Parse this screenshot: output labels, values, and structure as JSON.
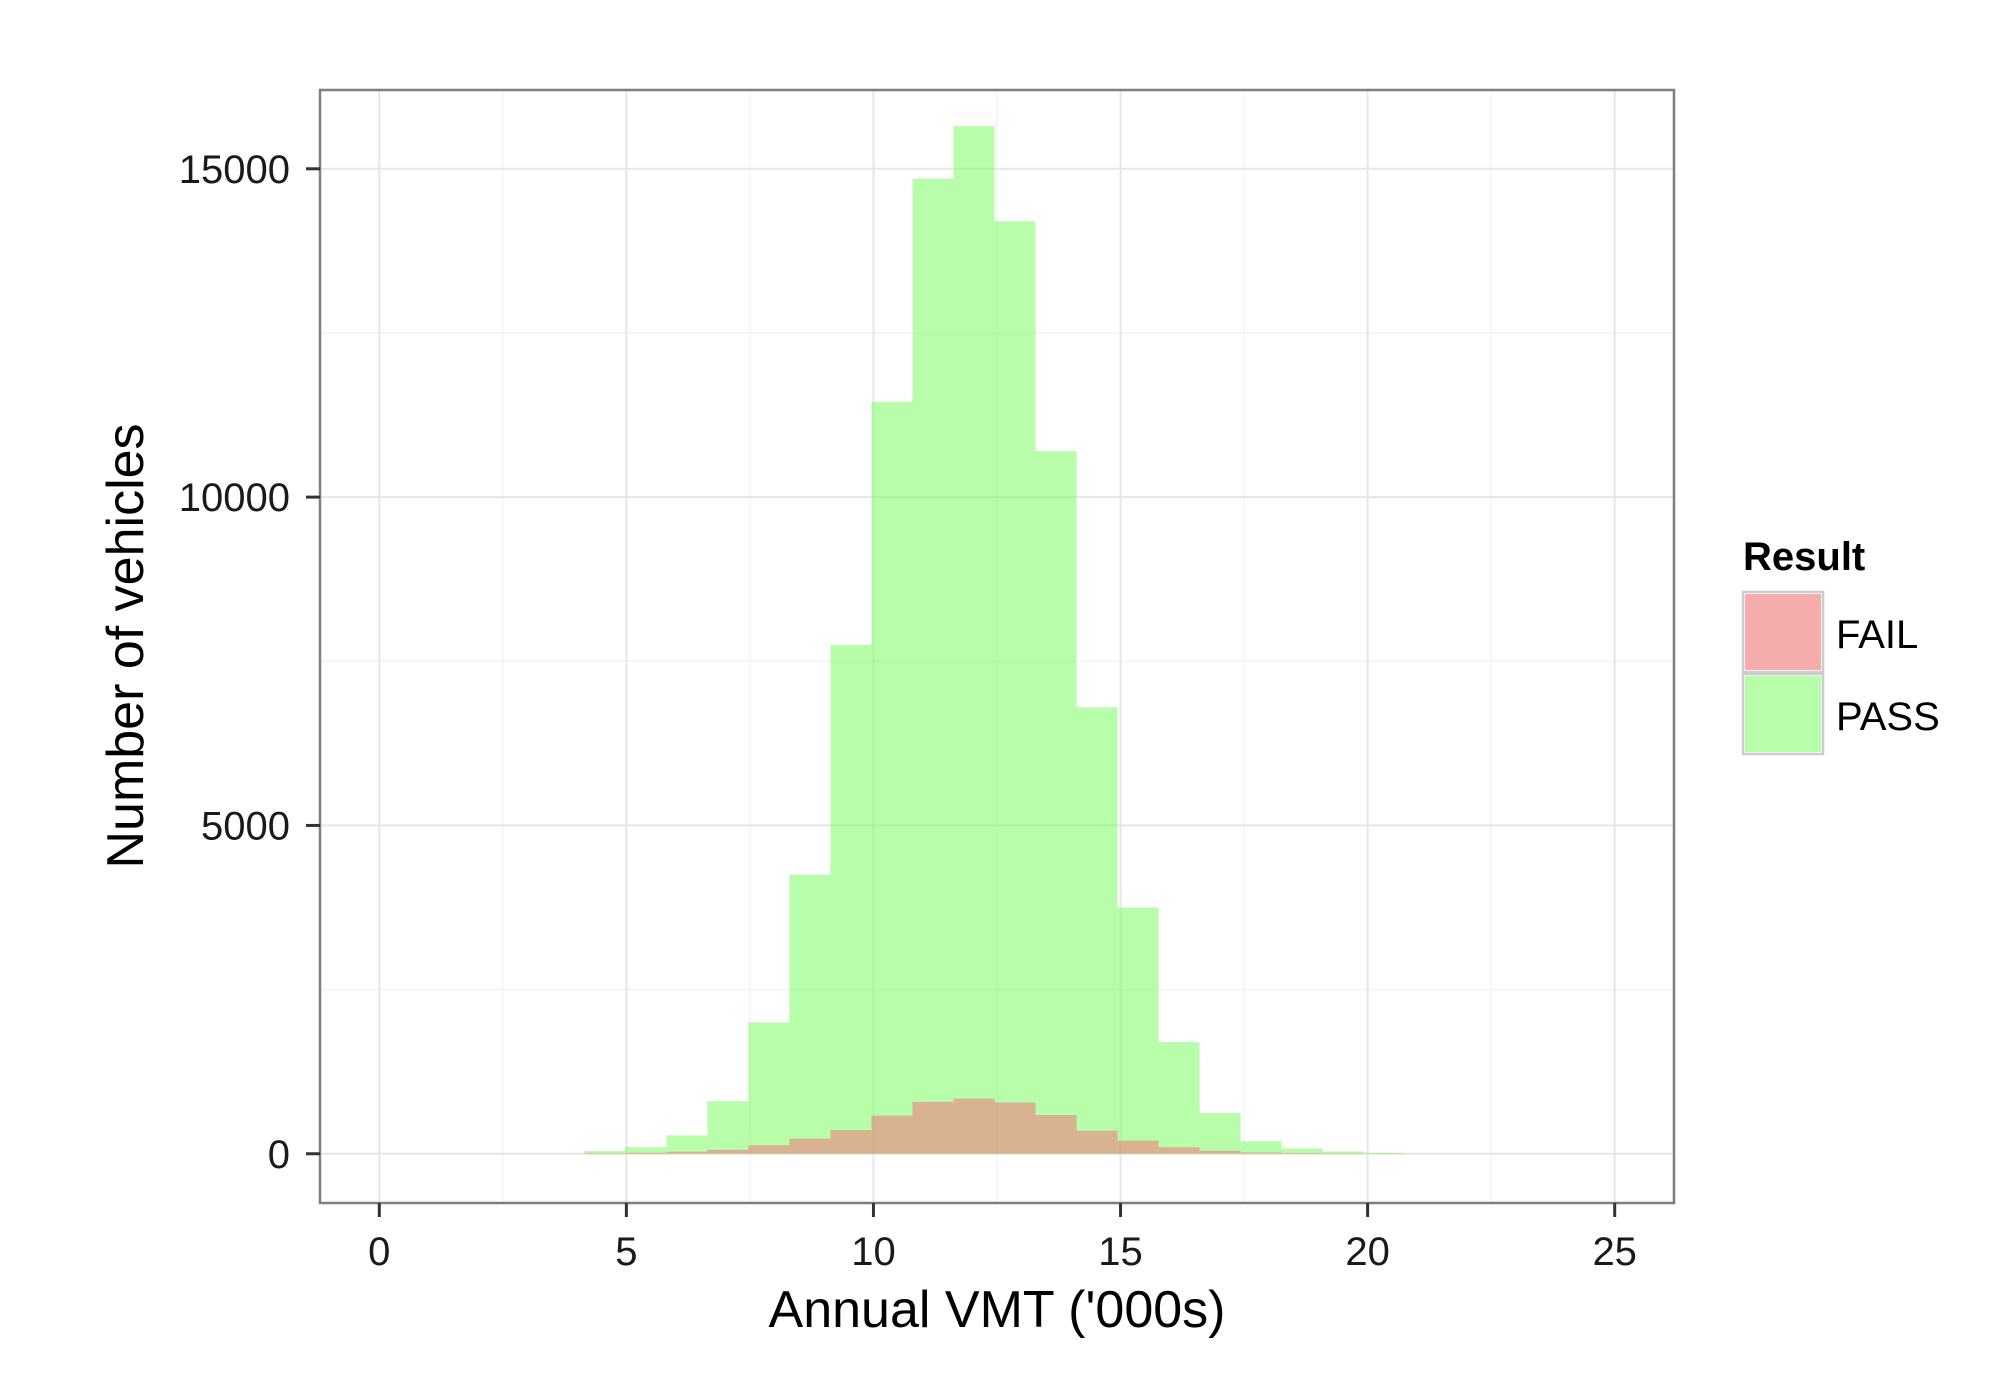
{
  "chart_data": {
    "type": "bar",
    "subtype": "overlapping-histogram",
    "xlabel": "Annual VMT ('000s)",
    "ylabel": "Number of vehicles",
    "xlim": [
      -1.2,
      26.2
    ],
    "ylim": [
      -750,
      16200
    ],
    "x_ticks": [
      0,
      5,
      10,
      15,
      20,
      25
    ],
    "y_ticks": [
      0,
      5000,
      10000,
      15000
    ],
    "bin_width": 0.83,
    "grid": true,
    "legend": {
      "title": "Result",
      "placement": "right"
    },
    "series": [
      {
        "name": "FAIL",
        "color": "#f08080",
        "opacity": 0.6,
        "x": [
          4.15,
          4.98,
          5.81,
          6.64,
          7.47,
          8.3,
          9.13,
          9.96,
          10.79,
          11.62,
          12.45,
          13.28,
          14.11,
          14.94,
          15.77,
          16.6,
          17.43,
          18.26,
          19.09,
          19.92
        ],
        "values": [
          5,
          15,
          30,
          60,
          130,
          230,
          360,
          580,
          790,
          840,
          780,
          590,
          350,
          200,
          100,
          45,
          20,
          10,
          5,
          2
        ]
      },
      {
        "name": "PASS",
        "color": "#7cfc64",
        "opacity": 0.55,
        "x": [
          4.15,
          4.98,
          5.81,
          6.64,
          7.47,
          8.3,
          9.13,
          9.96,
          10.79,
          11.62,
          12.45,
          13.28,
          14.11,
          14.94,
          15.77,
          16.6,
          17.43,
          18.26,
          19.09,
          19.92
        ],
        "values": [
          40,
          100,
          280,
          800,
          2000,
          4250,
          7750,
          11450,
          14850,
          15650,
          14200,
          10700,
          6800,
          3750,
          1700,
          620,
          190,
          80,
          35,
          15
        ]
      }
    ]
  }
}
